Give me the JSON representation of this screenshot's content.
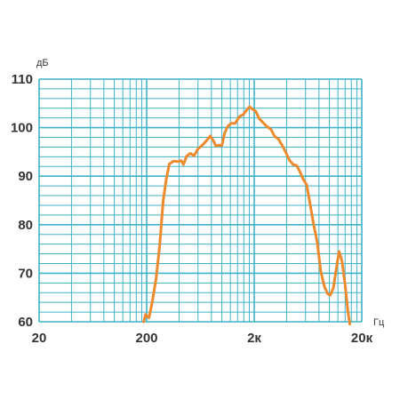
{
  "chart_data": {
    "type": "line",
    "xscale": "log",
    "xlim": [
      20,
      20000
    ],
    "ylim": [
      60,
      110
    ],
    "y_unit": "дБ",
    "x_unit": "Гц",
    "x_ticks": [
      {
        "value": 20,
        "label": "20"
      },
      {
        "value": 200,
        "label": "200"
      },
      {
        "value": 2000,
        "label": "2к"
      },
      {
        "value": 20000,
        "label": "20к"
      }
    ],
    "y_ticks": [
      {
        "value": 60,
        "label": "60"
      },
      {
        "value": 70,
        "label": "70"
      },
      {
        "value": 80,
        "label": "80"
      },
      {
        "value": 90,
        "label": "90"
      },
      {
        "value": 100,
        "label": "100"
      },
      {
        "value": 110,
        "label": "110"
      }
    ],
    "grid": true,
    "grid_color": "#3fb2c8",
    "series": [
      {
        "color": "#ec8a2d",
        "points": [
          [
            188,
            60
          ],
          [
            195,
            61.5
          ],
          [
            210,
            60.8
          ],
          [
            225,
            64
          ],
          [
            245,
            69
          ],
          [
            265,
            76
          ],
          [
            285,
            85
          ],
          [
            305,
            89.5
          ],
          [
            325,
            92.5
          ],
          [
            355,
            93.1
          ],
          [
            390,
            93
          ],
          [
            420,
            93.2
          ],
          [
            440,
            92.4
          ],
          [
            470,
            94.1
          ],
          [
            510,
            94.7
          ],
          [
            550,
            94.2
          ],
          [
            600,
            95.6
          ],
          [
            660,
            96.4
          ],
          [
            720,
            97.3
          ],
          [
            780,
            98.3
          ],
          [
            830,
            97.4
          ],
          [
            880,
            96.2
          ],
          [
            940,
            96.4
          ],
          [
            1000,
            96.3
          ],
          [
            1060,
            98.8
          ],
          [
            1130,
            100.2
          ],
          [
            1220,
            100.9
          ],
          [
            1330,
            100.9
          ],
          [
            1460,
            102.3
          ],
          [
            1580,
            102.7
          ],
          [
            1700,
            103.6
          ],
          [
            1810,
            104.3
          ],
          [
            1930,
            103.8
          ],
          [
            2060,
            103.4
          ],
          [
            2220,
            101.9
          ],
          [
            2400,
            101.1
          ],
          [
            2600,
            100.3
          ],
          [
            2850,
            99.7
          ],
          [
            3100,
            98.2
          ],
          [
            3350,
            97.7
          ],
          [
            3650,
            96.3
          ],
          [
            3950,
            94.8
          ],
          [
            4250,
            93.3
          ],
          [
            4600,
            92.4
          ],
          [
            4950,
            92.2
          ],
          [
            5300,
            91
          ],
          [
            5700,
            89.4
          ],
          [
            6150,
            88.2
          ],
          [
            6650,
            84
          ],
          [
            7150,
            80
          ],
          [
            7700,
            76.5
          ],
          [
            8300,
            70.5
          ],
          [
            8950,
            67.4
          ],
          [
            9600,
            65.8
          ],
          [
            10200,
            65.5
          ],
          [
            10900,
            67
          ],
          [
            11600,
            71
          ],
          [
            12300,
            74.5
          ],
          [
            13100,
            72.5
          ],
          [
            14000,
            67.5
          ],
          [
            14900,
            62
          ],
          [
            15500,
            59.5
          ]
        ]
      }
    ]
  }
}
